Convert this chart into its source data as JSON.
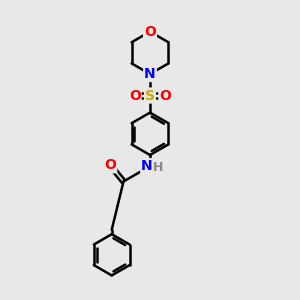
{
  "background_color": "#e8e8e8",
  "line_color": "#000000",
  "bond_width": 1.8,
  "atom_colors": {
    "O": "#ff0000",
    "N": "#0000ff",
    "S": "#ccaa00",
    "H": "#888888",
    "C": "#000000"
  },
  "font_size": 10,
  "font_size_h": 9,
  "fig_size": [
    3.0,
    3.0
  ],
  "dpi": 100,
  "xlim": [
    0,
    10
  ],
  "ylim": [
    0,
    10
  ]
}
